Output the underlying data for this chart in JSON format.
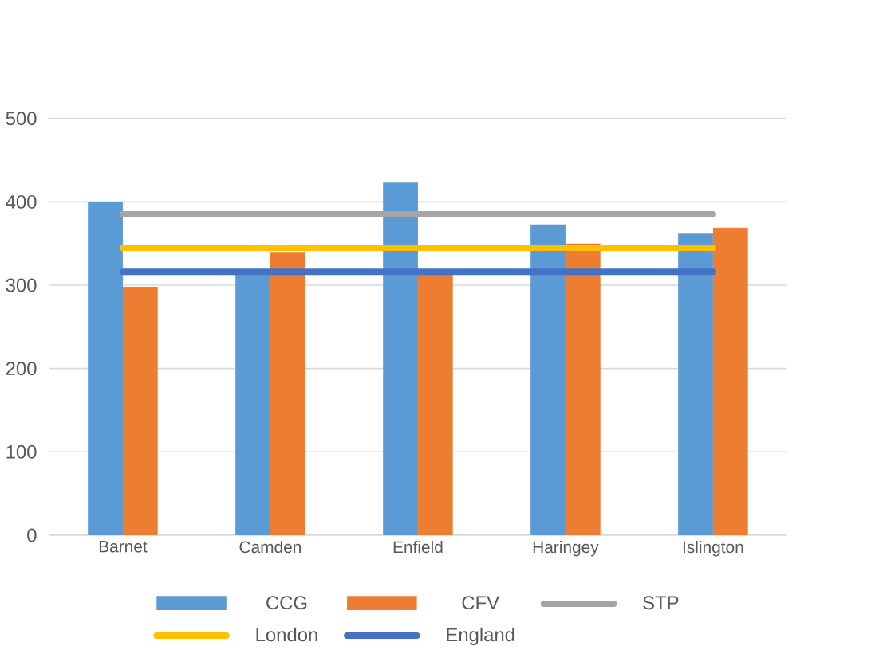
{
  "chart_data": {
    "type": "bar",
    "categories": [
      "Barnet",
      "Camden",
      "Enfield",
      "Haringey",
      "Islington"
    ],
    "series": [
      {
        "name": "CCG",
        "color": "#5b9bd5",
        "values": [
          400,
          316,
          423,
          373,
          362
        ]
      },
      {
        "name": "CFV",
        "color": "#ed7d31",
        "values": [
          298,
          340,
          315,
          350,
          369
        ]
      },
      {
        "name": "STP",
        "type": "line",
        "color": "#a5a5a5",
        "values": [
          385,
          385,
          385,
          385,
          385
        ]
      },
      {
        "name": "London",
        "type": "line",
        "color": "#ffc000",
        "values": [
          345,
          345,
          345,
          345,
          345
        ]
      },
      {
        "name": "England",
        "type": "line",
        "color": "#4472c4",
        "values": [
          316,
          316,
          316,
          316,
          316
        ]
      }
    ],
    "ylim": [
      0,
      500
    ],
    "yticks": [
      0,
      100,
      200,
      300,
      400,
      500
    ],
    "grid": "y",
    "legend": "bottom"
  }
}
